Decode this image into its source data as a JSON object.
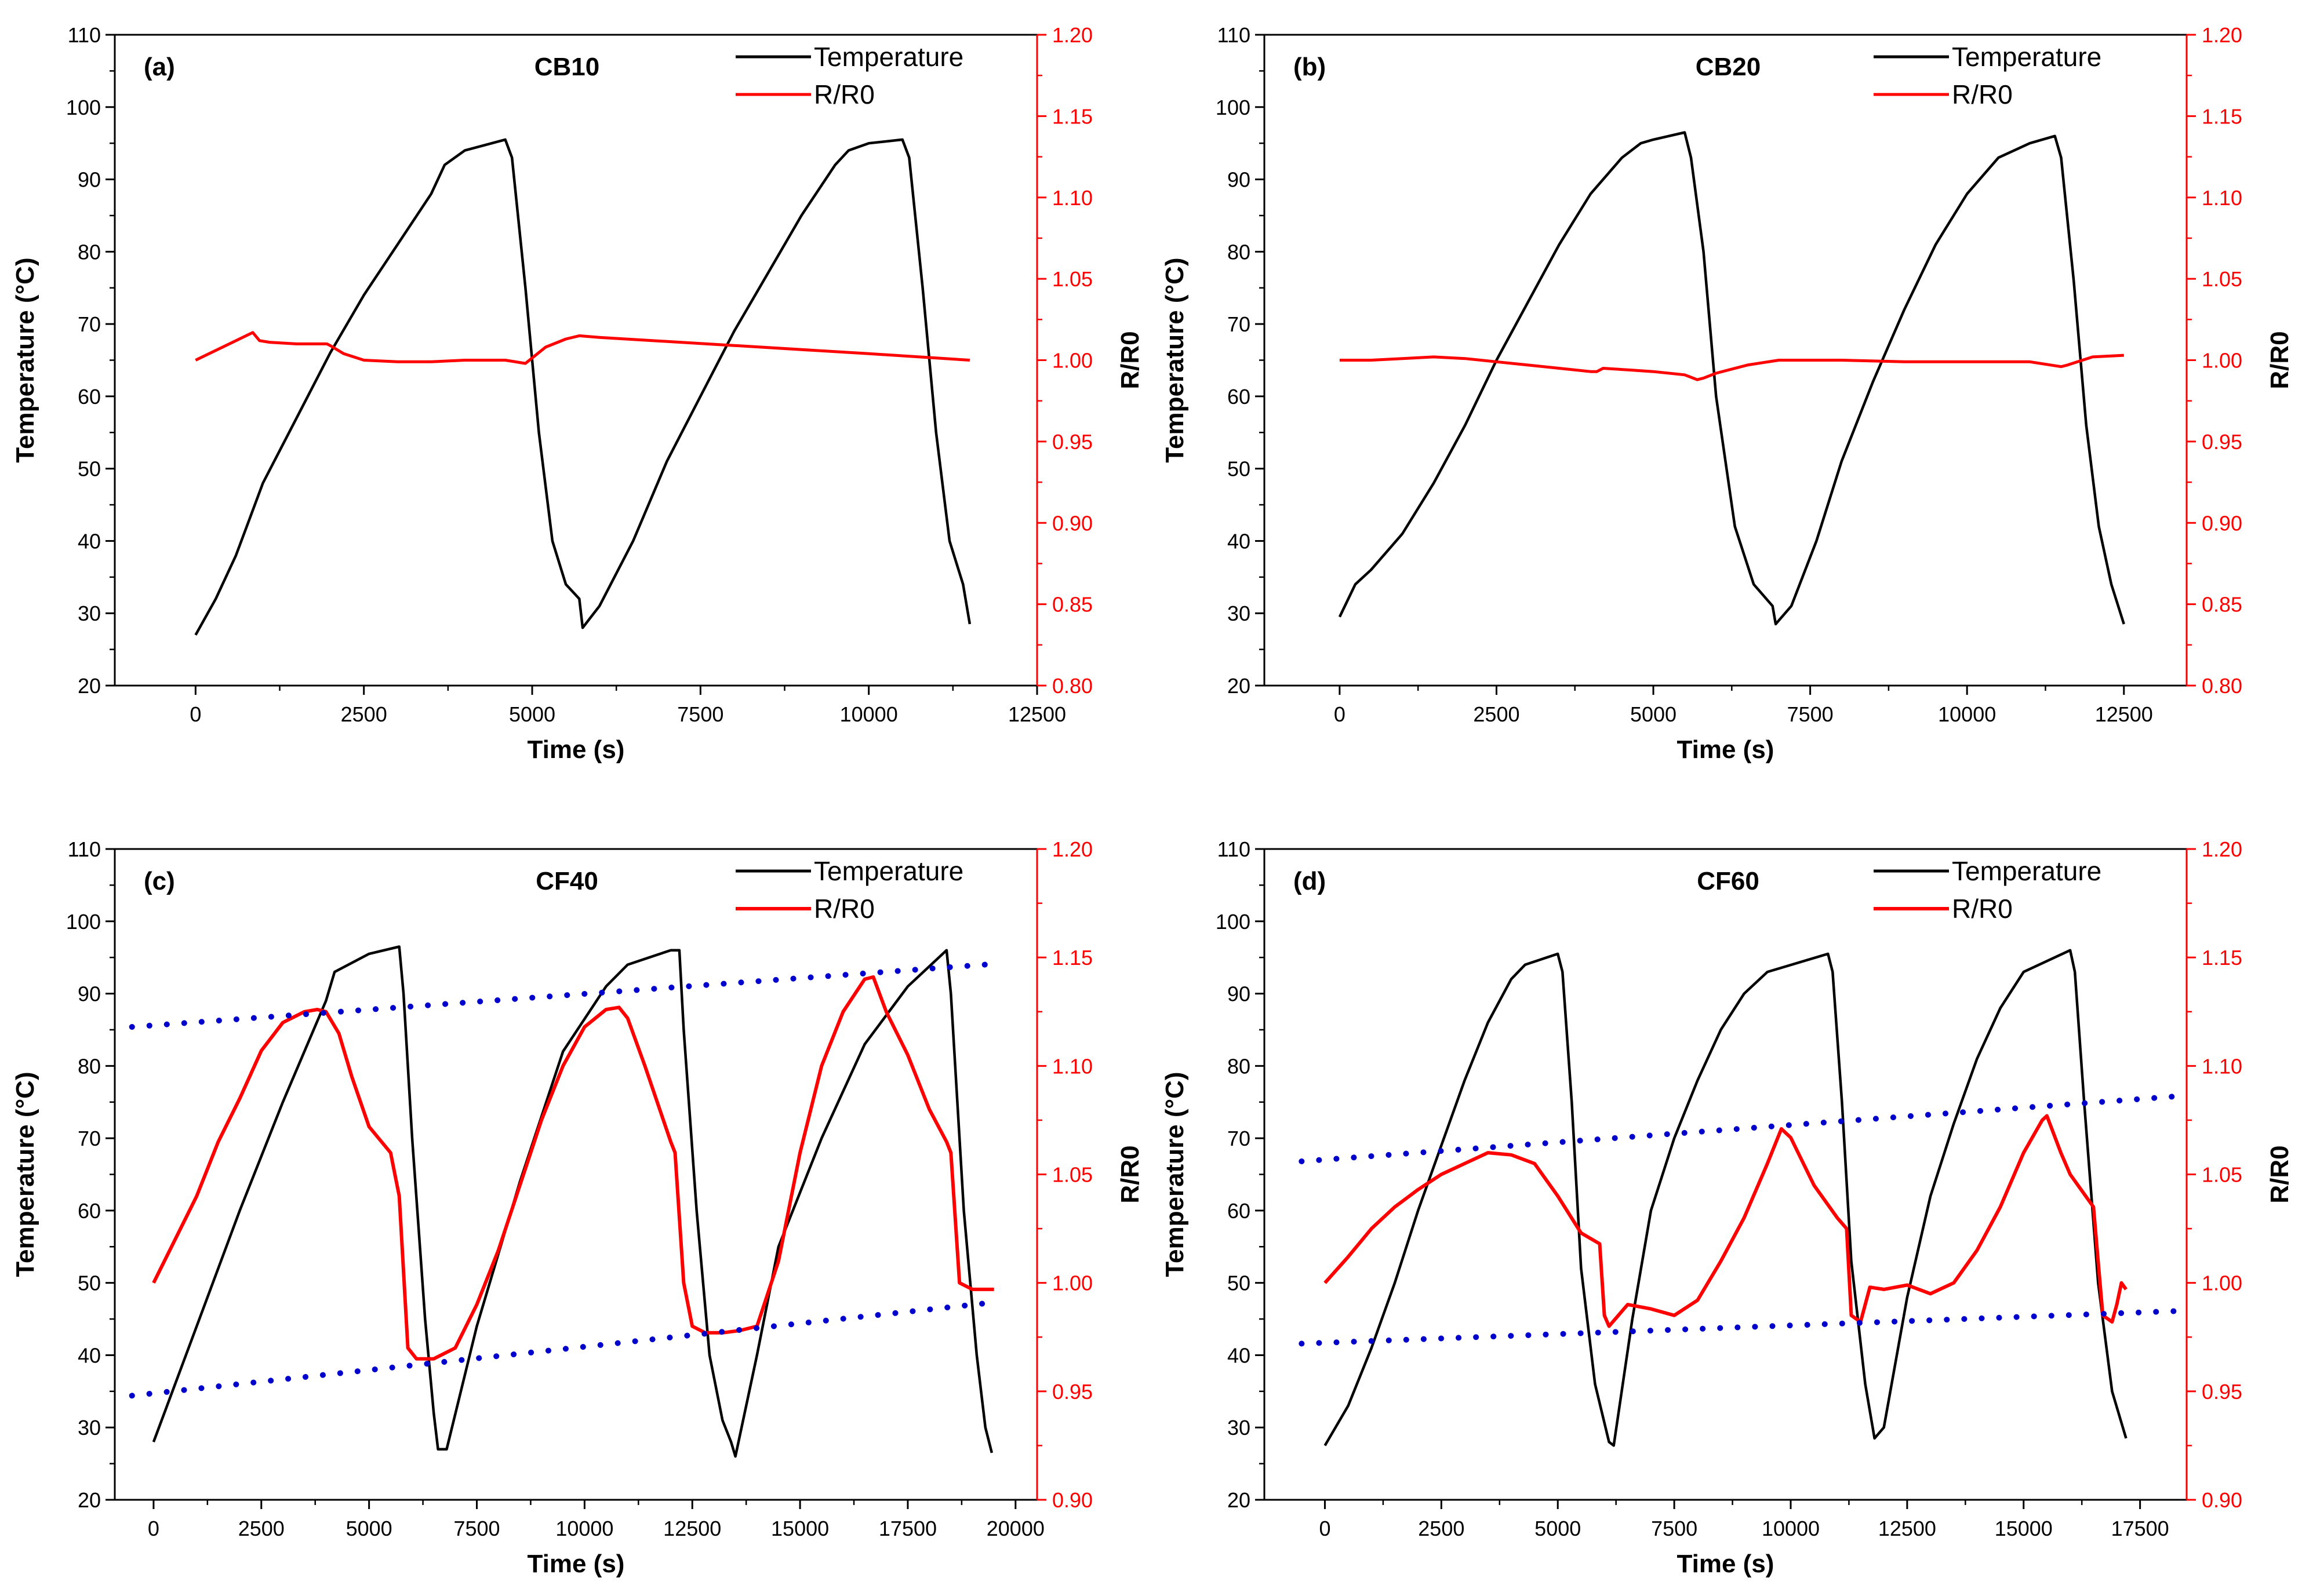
{
  "colors": {
    "temperature": "#000000",
    "resistance": "#ff0000",
    "trend": "#0000cc"
  },
  "chart_data": [
    {
      "panel": "(a)",
      "title": "CB10",
      "type": "line",
      "xlabel": "Time (s)",
      "ylabel": "Temperature (°C)",
      "y2label": "R/R0",
      "xlim": [
        -1200,
        12500
      ],
      "ylim": [
        20,
        110
      ],
      "y2lim": [
        0.8,
        1.2
      ],
      "xticks": [
        0,
        2500,
        5000,
        7500,
        10000,
        12500
      ],
      "yticks": [
        20,
        30,
        40,
        50,
        60,
        70,
        80,
        90,
        100,
        110
      ],
      "y2ticks": [
        "0.80",
        "0.85",
        "0.90",
        "0.95",
        "1.00",
        "1.05",
        "1.10",
        "1.15",
        "1.20"
      ],
      "legend": [
        "Temperature",
        "R/R0"
      ],
      "series": [
        {
          "name": "Temperature",
          "axis": "left",
          "x": [
            0,
            300,
            600,
            800,
            1000,
            1500,
            2000,
            2500,
            3000,
            3500,
            3700,
            4000,
            4600,
            4700,
            4900,
            5100,
            5300,
            5500,
            5700,
            5750,
            6000,
            6500,
            7000,
            7500,
            8000,
            8500,
            9000,
            9500,
            9700,
            10000,
            10500,
            10600,
            10800,
            11000,
            11200,
            11400,
            11500
          ],
          "y": [
            27,
            32,
            38,
            43,
            48,
            57,
            66,
            74,
            81,
            88,
            92,
            94,
            95.5,
            93,
            75,
            55,
            40,
            34,
            32,
            28,
            31,
            40,
            51,
            60,
            69,
            77,
            85,
            92,
            94,
            95,
            95.5,
            93,
            75,
            55,
            40,
            34,
            28.5
          ]
        },
        {
          "name": "R/R0",
          "axis": "right",
          "x": [
            0,
            850,
            950,
            1100,
            1500,
            1950,
            2000,
            2200,
            2500,
            3000,
            3500,
            4000,
            4600,
            4900,
            5200,
            5500,
            5700,
            6000,
            8000,
            10000,
            11500
          ],
          "y": [
            1.0,
            1.017,
            1.012,
            1.011,
            1.01,
            1.01,
            1.009,
            1.004,
            1.0,
            0.999,
            0.999,
            1.0,
            1.0,
            0.998,
            1.008,
            1.013,
            1.015,
            1.014,
            1.009,
            1.004,
            1.0
          ]
        }
      ]
    },
    {
      "panel": "(b)",
      "title": "CB20",
      "type": "line",
      "xlabel": "Time (s)",
      "ylabel": "Temperature (°C)",
      "y2label": "R/R0",
      "xlim": [
        -1200,
        13500
      ],
      "ylim": [
        20,
        110
      ],
      "y2lim": [
        0.8,
        1.2
      ],
      "xticks": [
        0,
        2500,
        5000,
        7500,
        10000,
        12500
      ],
      "yticks": [
        20,
        30,
        40,
        50,
        60,
        70,
        80,
        90,
        100,
        110
      ],
      "y2ticks": [
        "0.80",
        "0.85",
        "0.90",
        "0.95",
        "1.00",
        "1.05",
        "1.10",
        "1.15",
        "1.20"
      ],
      "legend": [
        "Temperature",
        "R/R0"
      ],
      "series": [
        {
          "name": "Temperature",
          "axis": "left",
          "x": [
            0,
            250,
            500,
            1000,
            1500,
            2000,
            2500,
            3000,
            3500,
            4000,
            4500,
            4800,
            5000,
            5500,
            5600,
            5800,
            6000,
            6300,
            6600,
            6900,
            6950,
            7200,
            7600,
            8000,
            8500,
            9000,
            9500,
            10000,
            10500,
            11000,
            11400,
            11500,
            11700,
            11900,
            12100,
            12300,
            12500
          ],
          "y": [
            29.5,
            34,
            36,
            41,
            48,
            56,
            65,
            73,
            81,
            88,
            93,
            95,
            95.5,
            96.5,
            93,
            80,
            60,
            42,
            34,
            31,
            28.5,
            31,
            40,
            51,
            62,
            72,
            81,
            88,
            93,
            95,
            96,
            93,
            76,
            56,
            42,
            34,
            28.5
          ]
        },
        {
          "name": "R/R0",
          "axis": "right",
          "x": [
            0,
            500,
            1000,
            1500,
            2000,
            2500,
            3000,
            3500,
            4000,
            4100,
            4200,
            4600,
            5000,
            5500,
            5700,
            5800,
            6000,
            6500,
            7000,
            7500,
            8000,
            9000,
            10000,
            11000,
            11500,
            11600,
            12000,
            12500
          ],
          "y": [
            1.0,
            1.0,
            1.001,
            1.002,
            1.001,
            0.999,
            0.997,
            0.995,
            0.993,
            0.993,
            0.995,
            0.994,
            0.993,
            0.991,
            0.988,
            0.989,
            0.992,
            0.997,
            1.0,
            1.0,
            1.0,
            0.999,
            0.999,
            0.999,
            0.996,
            0.997,
            1.002,
            1.003
          ]
        }
      ]
    },
    {
      "panel": "(c)",
      "title": "CF40",
      "type": "line",
      "xlabel": "Time (s)",
      "ylabel": "Temperature (°C)",
      "y2label": "R/R0",
      "xlim": [
        -900,
        20500
      ],
      "ylim": [
        20,
        110
      ],
      "y2lim": [
        0.9,
        1.2
      ],
      "xticks": [
        0,
        2500,
        5000,
        7500,
        10000,
        12500,
        15000,
        17500,
        20000
      ],
      "yticks": [
        20,
        30,
        40,
        50,
        60,
        70,
        80,
        90,
        100,
        110
      ],
      "y2ticks": [
        "0.90",
        "0.95",
        "1.00",
        "1.05",
        "1.10",
        "1.15",
        "1.20"
      ],
      "legend": [
        "Temperature",
        "R/R0"
      ],
      "series": [
        {
          "name": "Temperature",
          "axis": "left",
          "x": [
            0,
            1000,
            2000,
            3000,
            4000,
            4200,
            5000,
            5700,
            5800,
            6000,
            6300,
            6500,
            6600,
            6800,
            7500,
            8500,
            9500,
            10500,
            11000,
            12000,
            12200,
            12300,
            12600,
            12900,
            13200,
            13400,
            13500,
            14000,
            14500,
            15500,
            16500,
            17500,
            18400,
            18500,
            18800,
            19100,
            19300,
            19450
          ],
          "y": [
            28,
            44,
            60,
            75,
            89,
            93,
            95.5,
            96.5,
            90,
            70,
            45,
            32,
            27,
            27,
            44,
            64,
            82,
            91,
            94,
            96,
            96,
            85,
            60,
            40,
            31,
            28,
            26,
            40,
            55,
            70,
            83,
            91,
            96,
            90,
            60,
            40,
            30,
            26.5
          ]
        },
        {
          "name": "R/R0",
          "axis": "right",
          "x": [
            0,
            500,
            1000,
            1500,
            2000,
            2500,
            3000,
            3500,
            3800,
            4000,
            4300,
            4600,
            5000,
            5500,
            5600,
            5700,
            5900,
            6100,
            6500,
            7000,
            7500,
            8000,
            8500,
            9000,
            9500,
            10000,
            10500,
            10800,
            11000,
            11400,
            12000,
            12100,
            12300,
            12500,
            12800,
            13200,
            13600,
            14000,
            14500,
            15000,
            15500,
            16000,
            16500,
            16700,
            17000,
            17500,
            18000,
            18400,
            18500,
            18700,
            19000,
            19500
          ],
          "y": [
            1.0,
            1.02,
            1.04,
            1.065,
            1.085,
            1.107,
            1.12,
            1.125,
            1.126,
            1.125,
            1.115,
            1.095,
            1.072,
            1.06,
            1.05,
            1.04,
            0.97,
            0.965,
            0.965,
            0.97,
            0.99,
            1.015,
            1.045,
            1.075,
            1.1,
            1.118,
            1.126,
            1.127,
            1.122,
            1.1,
            1.065,
            1.06,
            1.0,
            0.98,
            0.977,
            0.977,
            0.978,
            0.98,
            1.01,
            1.06,
            1.1,
            1.125,
            1.14,
            1.141,
            1.125,
            1.105,
            1.08,
            1.065,
            1.06,
            1.0,
            0.997,
            0.997
          ]
        },
        {
          "name": "Upper envelope",
          "axis": "right",
          "style": "dotted",
          "x": [
            -500,
            19500
          ],
          "y": [
            1.118,
            1.147
          ]
        },
        {
          "name": "Lower envelope",
          "axis": "right",
          "style": "dotted",
          "x": [
            -500,
            19500
          ],
          "y": [
            0.948,
            0.991
          ]
        }
      ]
    },
    {
      "panel": "(d)",
      "title": "CF60",
      "type": "line",
      "xlabel": "Time (s)",
      "ylabel": "Temperature (°C)",
      "y2label": "R/R0",
      "xlim": [
        -1300,
        18500
      ],
      "ylim": [
        20,
        110
      ],
      "y2lim": [
        0.9,
        1.2
      ],
      "xticks": [
        0,
        2500,
        5000,
        7500,
        10000,
        12500,
        15000,
        17500
      ],
      "yticks": [
        20,
        30,
        40,
        50,
        60,
        70,
        80,
        90,
        100,
        110
      ],
      "y2ticks": [
        "0.90",
        "0.95",
        "1.00",
        "1.05",
        "1.10",
        "1.15",
        "1.20"
      ],
      "legend": [
        "Temperature",
        "R/R0"
      ],
      "series": [
        {
          "name": "Temperature",
          "axis": "left",
          "x": [
            0,
            500,
            1000,
            1500,
            2000,
            2500,
            3000,
            3500,
            4000,
            4300,
            5000,
            5100,
            5300,
            5500,
            5800,
            6100,
            6200,
            6600,
            7000,
            7500,
            8000,
            8500,
            9000,
            9500,
            10800,
            10900,
            11100,
            11300,
            11600,
            11800,
            12000,
            12500,
            13000,
            13500,
            14000,
            14500,
            15000,
            16000,
            16100,
            16300,
            16600,
            16900,
            17200
          ],
          "y": [
            27.5,
            33,
            41,
            50,
            60,
            69,
            78,
            86,
            92,
            94,
            95.5,
            93,
            75,
            52,
            36,
            28,
            27.5,
            45,
            60,
            70,
            78,
            85,
            90,
            93,
            95.5,
            93,
            75,
            53,
            36,
            28.5,
            30,
            48,
            62,
            72,
            81,
            88,
            93,
            96,
            93,
            75,
            50,
            35,
            28.5
          ]
        },
        {
          "name": "R/R0",
          "axis": "right",
          "x": [
            0,
            500,
            1000,
            1500,
            2000,
            2500,
            3000,
            3500,
            4000,
            4500,
            5000,
            5500,
            5900,
            6000,
            6100,
            6500,
            7000,
            7500,
            8000,
            8500,
            9000,
            9500,
            9800,
            10000,
            10500,
            11000,
            11200,
            11300,
            11500,
            11700,
            12000,
            12500,
            13000,
            13500,
            14000,
            14500,
            15000,
            15400,
            15500,
            15800,
            16000,
            16500,
            16600,
            16700,
            16900,
            17000,
            17100,
            17200
          ],
          "y": [
            1.0,
            1.012,
            1.025,
            1.035,
            1.043,
            1.05,
            1.055,
            1.06,
            1.059,
            1.055,
            1.04,
            1.023,
            1.018,
            0.985,
            0.98,
            0.99,
            0.988,
            0.985,
            0.992,
            1.01,
            1.03,
            1.055,
            1.071,
            1.067,
            1.045,
            1.03,
            1.025,
            0.985,
            0.982,
            0.998,
            0.997,
            0.999,
            0.995,
            1.0,
            1.015,
            1.035,
            1.06,
            1.075,
            1.077,
            1.06,
            1.05,
            1.035,
            1.01,
            0.985,
            0.982,
            0.99,
            1.0,
            0.997
          ]
        },
        {
          "name": "Upper envelope",
          "axis": "right",
          "style": "dotted",
          "x": [
            -500,
            18300
          ],
          "y": [
            1.056,
            1.086
          ]
        },
        {
          "name": "Lower envelope",
          "axis": "right",
          "style": "dotted",
          "x": [
            -500,
            18300
          ],
          "y": [
            0.972,
            0.987
          ]
        }
      ]
    }
  ]
}
